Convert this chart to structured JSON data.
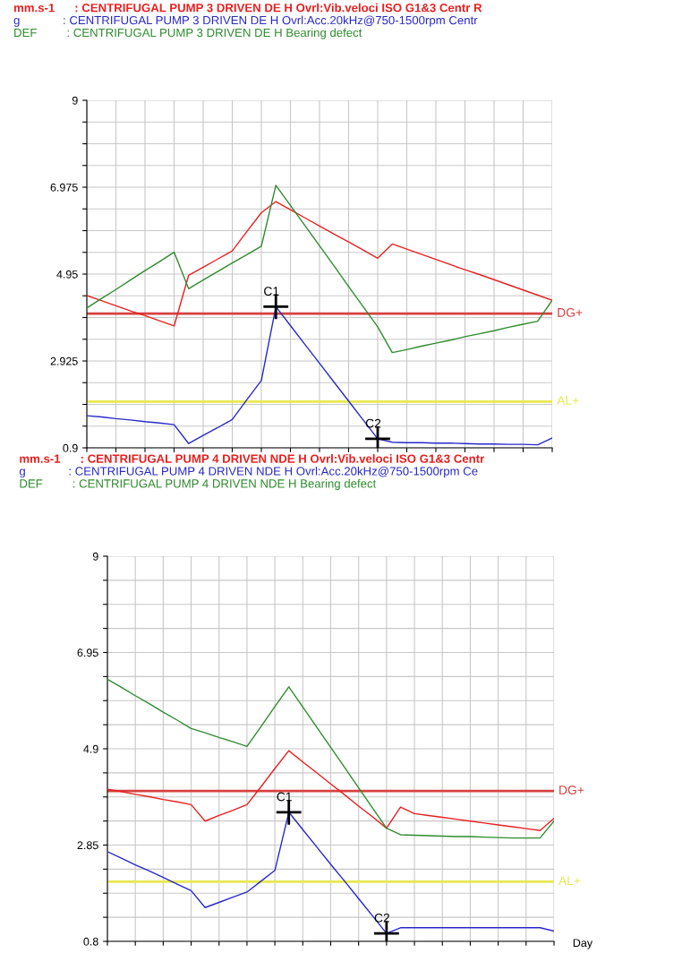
{
  "chart_data": [
    {
      "type": "line",
      "grid": true,
      "marker": "none",
      "line_style": "solid",
      "tick_labels": "y",
      "categories": [
        null,
        null,
        null,
        null,
        null,
        null,
        null,
        null,
        null,
        null,
        null,
        null,
        null,
        null,
        null,
        null,
        null,
        null,
        null,
        null,
        null,
        null,
        null,
        null,
        null,
        null,
        null,
        null,
        null,
        null,
        null,
        null,
        null
      ],
      "ylim": [
        0.9,
        9
      ],
      "yticks": [
        0.9,
        {
          "value": 1.40625,
          "label": null
        },
        {
          "value": 1.9125,
          "label": null
        },
        {
          "value": 2.41875,
          "label": null
        },
        2.925,
        {
          "value": 3.43125,
          "label": null
        },
        {
          "value": 3.9375,
          "label": null
        },
        {
          "value": 4.44375,
          "label": null
        },
        4.95,
        {
          "value": 5.45625,
          "label": null
        },
        {
          "value": 5.9625,
          "label": null
        },
        {
          "value": 6.46875,
          "label": null
        },
        6.975,
        {
          "value": 7.48125,
          "label": null
        },
        {
          "value": 7.9875,
          "label": null
        },
        {
          "value": 8.49375,
          "label": null
        },
        9
      ],
      "series": [
        {
          "name": "mm.s-1      : CENTRIFUGAL PUMP 3 DRIVEN DE H Ovrl:Vib.veloci ISO G1&3 Centr R",
          "color": "#e82020",
          "values": [
            4.45,
            4.33,
            4.21,
            4.09,
            3.98,
            3.86,
            3.74,
            4.92,
            5.11,
            5.3,
            5.49,
            5.94,
            6.38,
            6.64,
            6.45,
            6.26,
            6.07,
            5.88,
            5.7,
            5.51,
            5.32,
            5.65,
            5.53,
            5.41,
            5.29,
            5.17,
            5.05,
            4.94,
            4.82,
            4.7,
            4.58,
            4.46,
            4.34
          ]
        },
        {
          "name": "g             : CENTRIFUGAL PUMP 3 DRIVEN DE H Ovrl:Acc.20kHz@750-1500rpm Centr",
          "color": "#2828c8",
          "values": [
            1.65,
            1.62,
            1.58,
            1.55,
            1.51,
            1.48,
            1.44,
            1.0,
            1.19,
            1.37,
            1.56,
            2.02,
            2.47,
            4.19,
            3.75,
            3.31,
            2.87,
            2.43,
            1.99,
            1.55,
            1.11,
            1.03,
            1.02,
            1.02,
            1.01,
            1.01,
            1.0,
            0.99,
            0.99,
            0.98,
            0.98,
            0.97,
            1.13
          ]
        },
        {
          "name": "DEF         : CENTRIFUGAL PUMP 3 DRIVEN DE H Bearing defect",
          "color": "#2e8b2e",
          "values": [
            4.16,
            4.38,
            4.59,
            4.81,
            5.03,
            5.24,
            5.46,
            4.61,
            4.81,
            5.01,
            5.21,
            5.4,
            5.6,
            7.02,
            6.55,
            6.08,
            5.61,
            5.14,
            4.66,
            4.19,
            3.72,
            3.12,
            3.19,
            3.27,
            3.34,
            3.41,
            3.49,
            3.56,
            3.63,
            3.71,
            3.78,
            3.85,
            4.34
          ]
        }
      ],
      "ref_lines": [
        {
          "axis": "y",
          "value": 4.03,
          "label": "DG+",
          "color": "#d84040"
        },
        {
          "axis": "y",
          "value": 1.98,
          "label": "AL+",
          "color": "#e8e850"
        }
      ],
      "annotations": [
        {
          "text": "C1",
          "y": 4.19
        },
        {
          "text": "C2",
          "y": 1.11
        }
      ]
    },
    {
      "type": "line",
      "grid": true,
      "marker": "none",
      "line_style": "solid",
      "tick_labels": "y",
      "xlabel": "Day",
      "categories": [
        null,
        null,
        null,
        null,
        null,
        null,
        null,
        null,
        null,
        null,
        null,
        null,
        null,
        null,
        null,
        null,
        null,
        null,
        null,
        null,
        null,
        null,
        null,
        null,
        null,
        null,
        null,
        null,
        null,
        null,
        null,
        null,
        null
      ],
      "ylim": [
        0.8,
        9
      ],
      "yticks": [
        0.8,
        {
          "value": 1.3125,
          "label": null
        },
        {
          "value": 1.825,
          "label": null
        },
        {
          "value": 2.3375,
          "label": null
        },
        2.85,
        {
          "value": 3.3625,
          "label": null
        },
        {
          "value": 3.875,
          "label": null
        },
        {
          "value": 4.3875,
          "label": null
        },
        4.9,
        {
          "value": 5.4125,
          "label": null
        },
        {
          "value": 5.925,
          "label": null
        },
        {
          "value": 6.4375,
          "label": null
        },
        6.95,
        {
          "value": 7.4625,
          "label": null
        },
        {
          "value": 7.975,
          "label": null
        },
        {
          "value": 8.4875,
          "label": null
        },
        9
      ],
      "series": [
        {
          "name": "mm.s-1      : CENTRIFUGAL PUMP 4 DRIVEN NDE H Ovrl:Vib.veloci ISO G1&3 Centr",
          "color": "#e82020",
          "values": [
            4.04,
            3.99,
            3.93,
            3.88,
            3.82,
            3.77,
            3.71,
            3.36,
            3.48,
            3.59,
            3.71,
            4.09,
            4.48,
            4.86,
            4.62,
            4.39,
            4.15,
            3.92,
            3.68,
            3.45,
            3.21,
            3.66,
            3.52,
            3.48,
            3.44,
            3.4,
            3.36,
            3.32,
            3.28,
            3.24,
            3.2,
            3.16,
            3.42
          ]
        },
        {
          "name": "g             : CENTRIFUGAL PUMP 4 DRIVEN NDE H Ovrl:Acc.20kHz@750-1500rpm Ce",
          "color": "#2828c8",
          "values": [
            2.71,
            2.57,
            2.43,
            2.3,
            2.16,
            2.02,
            1.88,
            1.52,
            1.63,
            1.74,
            1.85,
            2.08,
            2.31,
            3.55,
            3.18,
            2.81,
            2.44,
            2.08,
            1.71,
            1.34,
            0.97,
            1.09,
            1.09,
            1.09,
            1.09,
            1.09,
            1.09,
            1.09,
            1.09,
            1.09,
            1.09,
            1.09,
            1.02
          ]
        },
        {
          "name": "DEF         : CENTRIFUGAL PUMP 4 DRIVEN NDE H Bearing defect",
          "color": "#2e8b2e",
          "values": [
            6.38,
            6.21,
            6.03,
            5.86,
            5.68,
            5.51,
            5.33,
            5.24,
            5.14,
            5.05,
            4.95,
            5.37,
            5.8,
            6.22,
            5.79,
            5.36,
            4.93,
            4.5,
            4.07,
            3.64,
            3.21,
            3.07,
            3.06,
            3.05,
            3.04,
            3.03,
            3.03,
            3.02,
            3.01,
            3.0,
            3.0,
            3.0,
            3.36
          ]
        }
      ],
      "ref_lines": [
        {
          "axis": "y",
          "value": 4.0,
          "label": "DG+",
          "color": "#d84040"
        },
        {
          "axis": "y",
          "value": 2.07,
          "label": "AL+",
          "color": "#e8e850"
        }
      ],
      "annotations": [
        {
          "text": "C1",
          "y": 3.55
        },
        {
          "text": "C2",
          "y": 0.97
        }
      ]
    }
  ]
}
